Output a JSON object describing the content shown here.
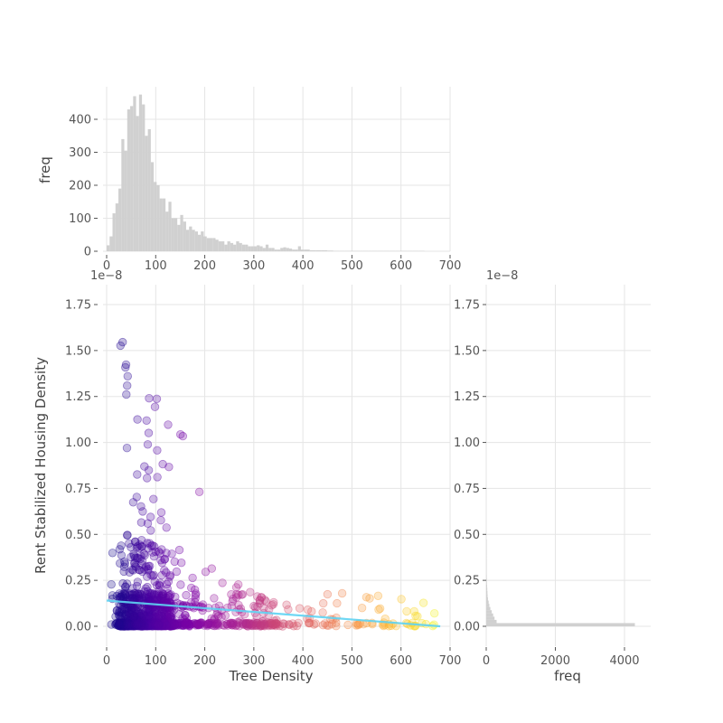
{
  "chart_data": {
    "type": "scatter",
    "main": {
      "xlabel": "Tree Density",
      "ylabel": "Rent Stabilized Housing Density",
      "xlim": [
        -15,
        700
      ],
      "ylim": [
        -0.06,
        1.86
      ],
      "x_ticks": [
        "0",
        "100",
        "200",
        "300",
        "400",
        "500",
        "600",
        "700"
      ],
      "y_ticks": [
        "0.00",
        "0.25",
        "0.50",
        "0.75",
        "1.00",
        "1.25",
        "1.50",
        "1.75"
      ],
      "y_offset_label": "1e−8",
      "colormap": "plasma (by x)",
      "point_count_approx": 9000,
      "regression_line": {
        "x": [
          0,
          680
        ],
        "y": [
          0.14,
          0.0
        ],
        "color": "#5fd3f3"
      }
    },
    "top_hist": {
      "ylabel": "freq",
      "xlim": [
        -15,
        700
      ],
      "ylim": [
        0,
        480
      ],
      "x_ticks": [
        "0",
        "100",
        "200",
        "300",
        "400",
        "500",
        "600",
        "700"
      ],
      "y_ticks": [
        "0",
        "100",
        "200",
        "300",
        "400"
      ],
      "bin_width": 6,
      "bins_start": 0,
      "counts": [
        18,
        45,
        115,
        145,
        190,
        340,
        305,
        430,
        440,
        470,
        410,
        475,
        445,
        350,
        370,
        270,
        210,
        200,
        160,
        160,
        120,
        150,
        100,
        100,
        80,
        110,
        90,
        65,
        75,
        65,
        60,
        50,
        60,
        45,
        40,
        40,
        40,
        35,
        30,
        30,
        20,
        30,
        25,
        20,
        30,
        25,
        20,
        20,
        15,
        15,
        15,
        18,
        15,
        10,
        20,
        10,
        10,
        5,
        5,
        10,
        12,
        10,
        8,
        5,
        5,
        15,
        5,
        5,
        5,
        3,
        3,
        3,
        3,
        3,
        3,
        2,
        2,
        1,
        1,
        1,
        1,
        1,
        1,
        1,
        1,
        1,
        1,
        1,
        1,
        1,
        1,
        1,
        1,
        1,
        1,
        1,
        1,
        1,
        1,
        1,
        1,
        1,
        1,
        1,
        1,
        1,
        1,
        1
      ]
    },
    "right_hist": {
      "xlabel": "freq",
      "xlim": [
        0,
        4500
      ],
      "x_ticks": [
        "0",
        "2000",
        "4000"
      ],
      "y_ticks": [
        "0.00",
        "0.25",
        "0.50",
        "0.75",
        "1.00",
        "1.25",
        "1.50",
        "1.75"
      ],
      "y_offset_label": "1e−8",
      "bin_height": 0.0175,
      "counts": [
        4300,
        300,
        240,
        200,
        160,
        120,
        90,
        70,
        50,
        40,
        35,
        30,
        25,
        20,
        18,
        15,
        12,
        10,
        8,
        6,
        5,
        4,
        3,
        2,
        2,
        1,
        1
      ]
    }
  }
}
